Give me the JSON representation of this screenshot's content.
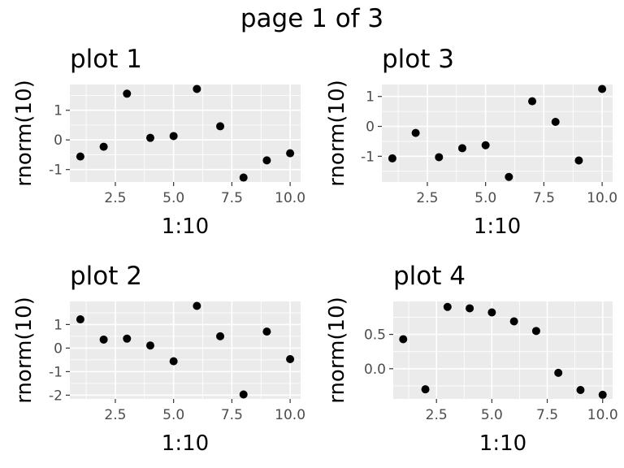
{
  "page_title": "page 1 of 3",
  "chart_data": [
    {
      "type": "scatter",
      "title": "plot 1",
      "xlabel": "1:10",
      "ylabel": "rnorm(10)",
      "x": [
        1,
        2,
        3,
        4,
        5,
        6,
        7,
        8,
        9,
        10
      ],
      "y": [
        -0.56,
        -0.23,
        1.56,
        0.07,
        0.13,
        1.72,
        0.46,
        -1.27,
        -0.69,
        -0.45
      ],
      "xlim": [
        0.55,
        10.45
      ],
      "ylim": [
        -1.42,
        1.87
      ],
      "xticks": [
        2.5,
        5.0,
        7.5,
        10.0
      ],
      "xtick_labels": [
        "2.5",
        "5.0",
        "7.5",
        "10.0"
      ],
      "yticks": [
        -1,
        0,
        1
      ],
      "ytick_labels": [
        "-1",
        "0",
        "1"
      ],
      "grid": true
    },
    {
      "type": "scatter",
      "title": "plot 3",
      "xlabel": "1:10",
      "ylabel": "rnorm(10)",
      "x": [
        1,
        2,
        3,
        4,
        5,
        6,
        7,
        8,
        9,
        10
      ],
      "y": [
        -1.07,
        -0.22,
        -1.03,
        -0.73,
        -0.63,
        -1.69,
        0.84,
        0.15,
        -1.14,
        1.25
      ],
      "xlim": [
        0.55,
        10.45
      ],
      "ylim": [
        -1.86,
        1.4
      ],
      "xticks": [
        2.5,
        5.0,
        7.5,
        10.0
      ],
      "xtick_labels": [
        "2.5",
        "5.0",
        "7.5",
        "10.0"
      ],
      "yticks": [
        -1,
        0,
        1
      ],
      "ytick_labels": [
        "-1",
        "0",
        "1"
      ],
      "grid": true
    },
    {
      "type": "scatter",
      "title": "plot 2",
      "xlabel": "1:10",
      "ylabel": "rnorm(10)",
      "x": [
        1,
        2,
        3,
        4,
        5,
        6,
        7,
        8,
        9,
        10
      ],
      "y": [
        1.22,
        0.36,
        0.4,
        0.11,
        -0.56,
        1.79,
        0.5,
        -1.97,
        0.7,
        -0.47
      ],
      "xlim": [
        0.55,
        10.45
      ],
      "ylim": [
        -2.16,
        1.98
      ],
      "xticks": [
        2.5,
        5.0,
        7.5,
        10.0
      ],
      "xtick_labels": [
        "2.5",
        "5.0",
        "7.5",
        "10.0"
      ],
      "yticks": [
        -2,
        -1,
        0,
        1
      ],
      "ytick_labels": [
        "-2",
        "-1",
        "0",
        "1"
      ],
      "grid": true
    },
    {
      "type": "scatter",
      "title": "plot 4",
      "xlabel": "1:10",
      "ylabel": "rnorm(10)",
      "x": [
        1,
        2,
        3,
        4,
        5,
        6,
        7,
        8,
        9,
        10
      ],
      "y": [
        0.43,
        -0.3,
        0.9,
        0.88,
        0.82,
        0.69,
        0.55,
        -0.06,
        -0.31,
        -0.38
      ],
      "xlim": [
        0.55,
        10.45
      ],
      "ylim": [
        -0.44,
        0.98
      ],
      "xticks": [
        2.5,
        5.0,
        7.5,
        10.0
      ],
      "xtick_labels": [
        "2.5",
        "5.0",
        "7.5",
        "10.0"
      ],
      "yticks": [
        0.0,
        0.5
      ],
      "ytick_labels": [
        "0.0",
        "0.5"
      ],
      "grid": true
    }
  ],
  "style": {
    "panel_bg": "#ebebeb",
    "grid_major": "#ffffff",
    "point_color": "#000000",
    "tick_color": "#333333"
  }
}
